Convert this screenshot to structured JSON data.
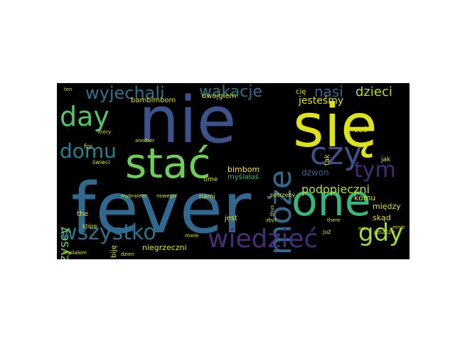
{
  "words": [
    {
      "text": "fever",
      "color": "#31688e"
    },
    {
      "text": "nie",
      "color": "#3b528b"
    },
    {
      "text": "się",
      "color": "#dde318"
    },
    {
      "text": "one",
      "color": "#35b779"
    },
    {
      "text": "stać",
      "color": "#6ece58"
    },
    {
      "text": "day",
      "color": "#52c569"
    },
    {
      "text": "może",
      "color": "#31688e"
    },
    {
      "text": "czy",
      "color": "#3b528b"
    },
    {
      "text": "wiedzieć",
      "color": "#472c7a"
    },
    {
      "text": "wszystko",
      "color": "#2c728e"
    },
    {
      "text": "gdy",
      "color": "#9fda3a"
    },
    {
      "text": "tym",
      "color": "#472c7a"
    },
    {
      "text": "domu",
      "color": "#26828e"
    },
    {
      "text": "wyjechali",
      "color": "#2c728e"
    },
    {
      "text": "wakacje",
      "color": "#2c728e"
    },
    {
      "text": "nasi",
      "color": "#31688e"
    },
    {
      "text": "dzieci",
      "color": "#b5de2b"
    },
    {
      "text": "wszyscy",
      "color": "#6ece58"
    },
    {
      "text": "podopieczni",
      "color": "#b5de2b"
    },
    {
      "text": "jesteśmy",
      "color": "#dde318"
    },
    {
      "text": "dzwon",
      "color": "#31688e"
    },
    {
      "text": "bimbom",
      "color": "#fde725"
    },
    {
      "text": "myślałaś",
      "color": "#35b779"
    },
    {
      "text": "dwojgiem",
      "color": "#dde318"
    },
    {
      "text": "bambimbom",
      "color": "#dde318"
    },
    {
      "text": "komu",
      "color": "#dde318"
    },
    {
      "text": "między",
      "color": "#dde318"
    },
    {
      "text": "skąd",
      "color": "#dde318"
    },
    {
      "text": "jeszcze",
      "color": "#dde318"
    },
    {
      "text": "potrzeby",
      "color": "#dde318"
    },
    {
      "text": "time",
      "color": "#dde318"
    },
    {
      "text": "jest",
      "color": "#dde318"
    },
    {
      "text": "nami",
      "color": "#dde318"
    },
    {
      "text": "niegrzeczni",
      "color": "#dde318"
    },
    {
      "text": "biję",
      "color": "#dde318"
    },
    {
      "text": "the",
      "color": "#dde318"
    },
    {
      "text": "for",
      "color": "#dde318"
    },
    {
      "text": "które",
      "color": "#dde318"
    },
    {
      "text": "świeci",
      "color": "#dde318"
    },
    {
      "text": "który",
      "color": "#dde318"
    },
    {
      "text": "mybraiem",
      "color": "#dde318"
    },
    {
      "text": "nowego",
      "color": "#dde318"
    },
    {
      "text": "już",
      "color": "#dde318"
    },
    {
      "text": "zbyt",
      "color": "#dde318"
    },
    {
      "text": "myślałem",
      "color": "#dde318"
    },
    {
      "text": "dzien",
      "color": "#dde318"
    },
    {
      "text": "miele",
      "color": "#dde318"
    },
    {
      "text": "cię",
      "color": "#dde318"
    },
    {
      "text": "tak",
      "color": "#dde318"
    },
    {
      "text": "coś",
      "color": "#dde318"
    },
    {
      "text": "jak",
      "color": "#dde318"
    },
    {
      "text": "mnie",
      "color": "#dde318"
    },
    {
      "text": "nim",
      "color": "#dde318"
    },
    {
      "text": "there",
      "color": "#dde318"
    },
    {
      "text": "ten",
      "color": "#dde318"
    },
    {
      "text": "another",
      "color": "#dde318"
    },
    {
      "text": "thus",
      "color": "#dde318"
    }
  ]
}
